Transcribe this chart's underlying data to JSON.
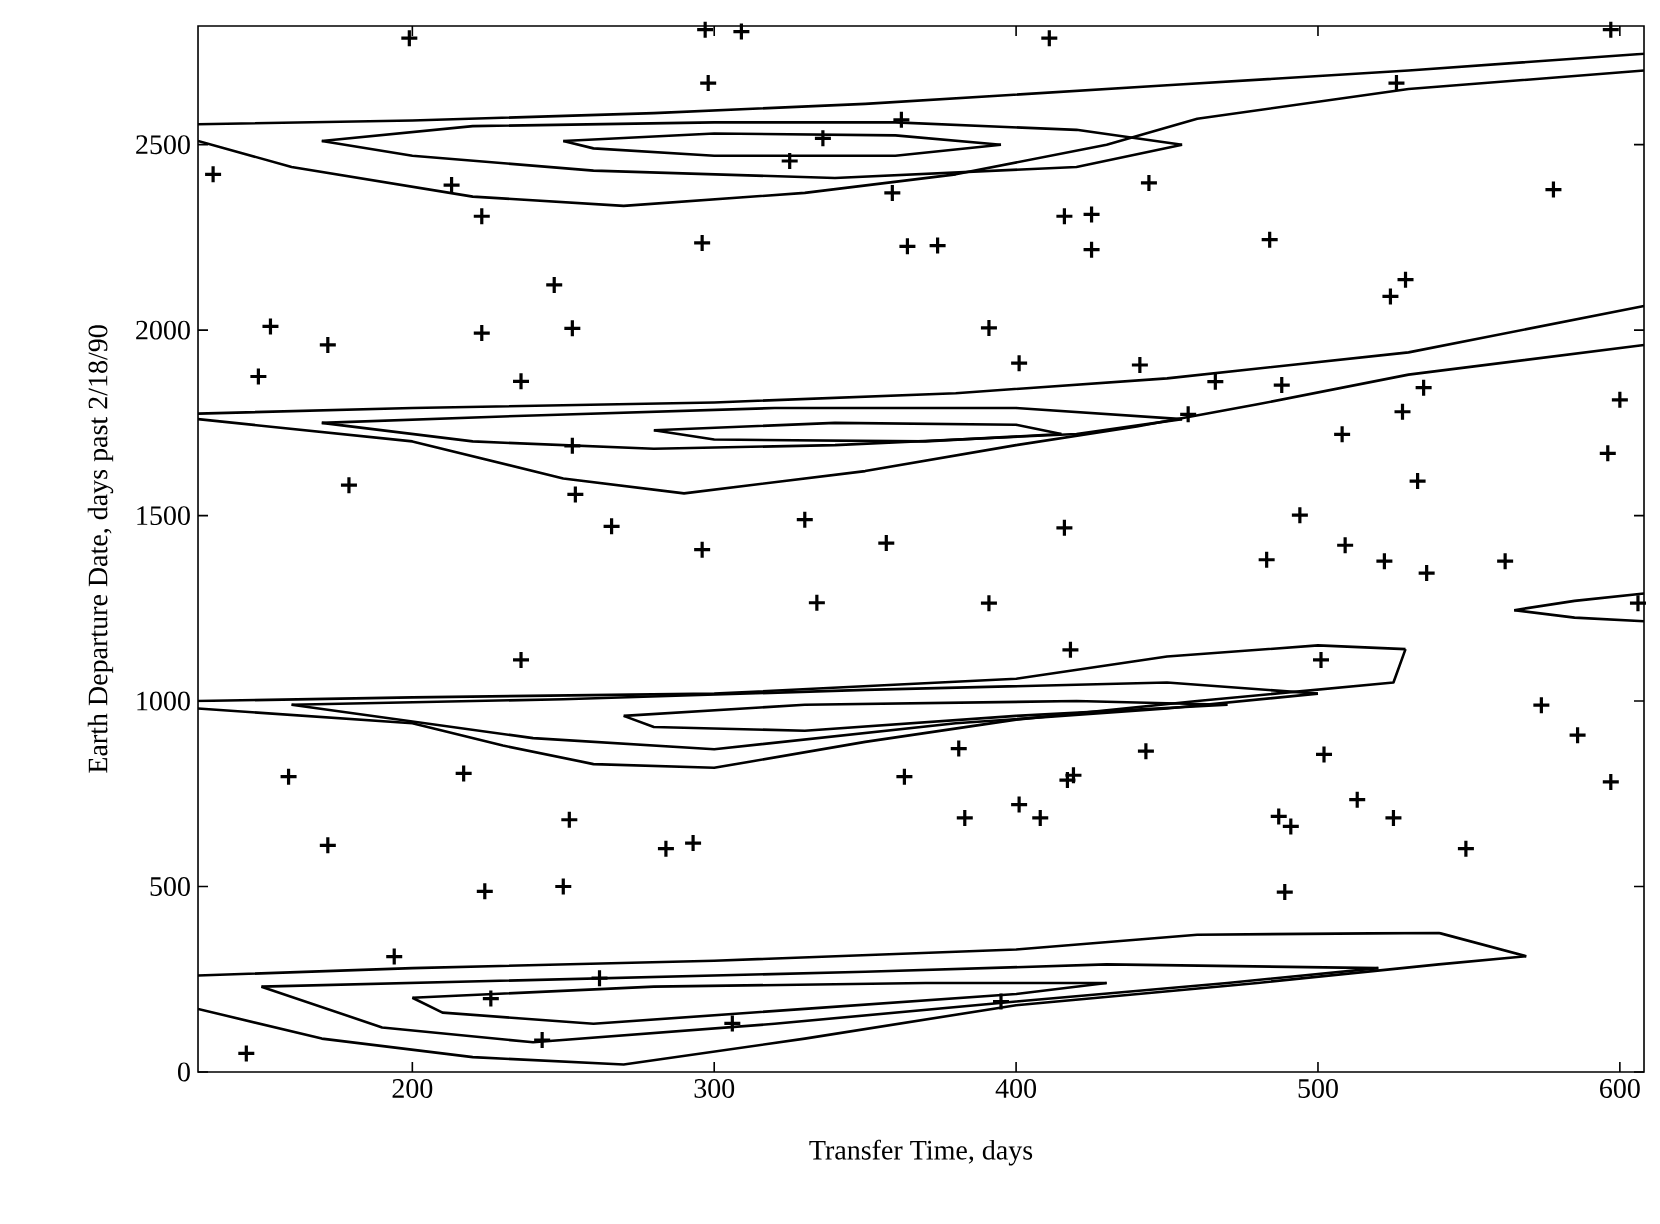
{
  "chart_data": {
    "type": "scatter",
    "xlabel": "Transfer Time, days",
    "ylabel": "Earth Departure Date, days past 2/18/90",
    "xlim": [
      129,
      608
    ],
    "ylim": [
      0,
      2820
    ],
    "xticks": [
      200,
      300,
      400,
      500,
      600
    ],
    "yticks": [
      0,
      500,
      1000,
      1500,
      2000,
      2500
    ],
    "grid": false,
    "series": [
      {
        "marker": "cross",
        "color": "#000000",
        "x": [
          199,
          297,
          309,
          298,
          362,
          336,
          325,
          134,
          213,
          223,
          296,
          364,
          247,
          153,
          223,
          253,
          172,
          149,
          236,
          179,
          254,
          266,
          330,
          296,
          357,
          359,
          253,
          334,
          411,
          597,
          526,
          444,
          578,
          416,
          425,
          425,
          374,
          484,
          529,
          524,
          391,
          401,
          441,
          466,
          488,
          535,
          528,
          600,
          457,
          508,
          596,
          533,
          494,
          416,
          483,
          509,
          522,
          536,
          562,
          391,
          236,
          159,
          217,
          363,
          172,
          252,
          284,
          293,
          224,
          250,
          194,
          145,
          243,
          306,
          226,
          262,
          606,
          418,
          501,
          574,
          586,
          597,
          381,
          443,
          502,
          417,
          419,
          383,
          401,
          408,
          487,
          491,
          513,
          525,
          549,
          489,
          395
        ],
        "values": [
          2787,
          2810,
          2805,
          2666,
          2567,
          2517,
          2456,
          2420,
          2391,
          2307,
          2235,
          2226,
          2122,
          2010,
          1992,
          2005,
          1960,
          1875,
          1862,
          1582,
          1557,
          1471,
          1489,
          1408,
          1426,
          2370,
          1688,
          1265,
          2787,
          2810,
          2666,
          2397,
          2379,
          2307,
          2312,
          2217,
          2228,
          2244,
          2136,
          2091,
          2006,
          1911,
          1906,
          1861,
          1852,
          1845,
          1780,
          1812,
          1773,
          1719,
          1668,
          1593,
          1501,
          1467,
          1381,
          1420,
          1377,
          1345,
          1377,
          1264,
          1111,
          796,
          805,
          796,
          611,
          680,
          602,
          617,
          487,
          500,
          311,
          50,
          86,
          131,
          198,
          253,
          1264,
          1138,
          1111,
          989,
          908,
          782,
          872,
          865,
          856,
          787,
          800,
          685,
          721,
          685,
          689,
          662,
          734,
          685,
          602,
          485,
          190
        ]
      },
      {
        "type": "line",
        "color": "#000000",
        "x": [
          129,
          200,
          280,
          350,
          450,
          530,
          608
        ],
        "values": [
          2555,
          2565,
          2585,
          2610,
          2660,
          2700,
          2745
        ]
      },
      {
        "type": "line",
        "color": "#000000",
        "x": [
          129,
          160,
          220,
          270,
          330,
          380,
          430,
          460,
          530,
          608
        ],
        "values": [
          2510,
          2440,
          2360,
          2335,
          2370,
          2420,
          2500,
          2570,
          2650,
          2700
        ]
      },
      {
        "type": "line",
        "color": "#000000",
        "x": [
          170,
          220,
          300,
          360,
          420,
          455
        ],
        "values": [
          2510,
          2550,
          2560,
          2560,
          2540,
          2500
        ]
      },
      {
        "type": "line",
        "color": "#000000",
        "x": [
          170,
          200,
          260,
          340,
          420,
          455
        ],
        "values": [
          2510,
          2470,
          2430,
          2410,
          2440,
          2500
        ]
      },
      {
        "type": "line",
        "color": "#000000",
        "x": [
          250,
          300,
          360,
          395
        ],
        "values": [
          2510,
          2530,
          2525,
          2500
        ]
      },
      {
        "type": "line",
        "color": "#000000",
        "x": [
          250,
          260,
          300,
          360,
          395
        ],
        "values": [
          2510,
          2490,
          2470,
          2470,
          2500
        ]
      },
      {
        "type": "line",
        "color": "#000000",
        "x": [
          129,
          200,
          300,
          380,
          450,
          530,
          608
        ],
        "values": [
          1775,
          1790,
          1805,
          1830,
          1870,
          1940,
          2065
        ]
      },
      {
        "type": "line",
        "color": "#000000",
        "x": [
          129,
          200,
          250,
          290,
          350,
          400,
          440,
          480,
          530,
          608
        ],
        "values": [
          1760,
          1700,
          1600,
          1560,
          1620,
          1690,
          1740,
          1800,
          1880,
          1960
        ]
      },
      {
        "type": "line",
        "color": "#000000",
        "x": [
          170,
          240,
          320,
          400,
          455
        ],
        "values": [
          1750,
          1770,
          1790,
          1790,
          1760
        ]
      },
      {
        "type": "line",
        "color": "#000000",
        "x": [
          170,
          220,
          280,
          340,
          420,
          455
        ],
        "values": [
          1750,
          1700,
          1680,
          1690,
          1720,
          1760
        ]
      },
      {
        "type": "line",
        "color": "#000000",
        "x": [
          280,
          340,
          400,
          415
        ],
        "values": [
          1730,
          1750,
          1745,
          1720
        ]
      },
      {
        "type": "line",
        "color": "#000000",
        "x": [
          280,
          300,
          370,
          415
        ],
        "values": [
          1730,
          1705,
          1700,
          1720
        ]
      },
      {
        "type": "line",
        "color": "#000000",
        "x": [
          129,
          200,
          300,
          400,
          450,
          500,
          529
        ],
        "values": [
          1000,
          1010,
          1020,
          1060,
          1120,
          1150,
          1140
        ]
      },
      {
        "type": "line",
        "color": "#000000",
        "x": [
          129,
          200,
          230,
          260,
          300,
          350,
          400,
          460,
          525,
          529
        ],
        "values": [
          980,
          940,
          880,
          830,
          820,
          890,
          950,
          1000,
          1050,
          1140
        ]
      },
      {
        "type": "line",
        "color": "#000000",
        "x": [
          160,
          250,
          350,
          450,
          500
        ],
        "values": [
          990,
          1005,
          1030,
          1050,
          1020
        ]
      },
      {
        "type": "line",
        "color": "#000000",
        "x": [
          160,
          240,
          300,
          380,
          450,
          500
        ],
        "values": [
          990,
          900,
          870,
          940,
          980,
          1020
        ]
      },
      {
        "type": "line",
        "color": "#000000",
        "x": [
          270,
          330,
          420,
          470
        ],
        "values": [
          960,
          990,
          1000,
          990
        ]
      },
      {
        "type": "line",
        "color": "#000000",
        "x": [
          270,
          280,
          330,
          400,
          470
        ],
        "values": [
          960,
          930,
          920,
          960,
          990
        ]
      },
      {
        "type": "line",
        "color": "#000000",
        "x": [
          129,
          200,
          300,
          400,
          460,
          540,
          569
        ],
        "values": [
          260,
          280,
          300,
          330,
          370,
          375,
          312
        ]
      },
      {
        "type": "line",
        "color": "#000000",
        "x": [
          129,
          170,
          220,
          270,
          330,
          400,
          480,
          540,
          569
        ],
        "values": [
          170,
          90,
          40,
          20,
          90,
          180,
          240,
          290,
          312
        ]
      },
      {
        "type": "line",
        "color": "#000000",
        "x": [
          150,
          250,
          350,
          430,
          520
        ],
        "values": [
          230,
          250,
          270,
          290,
          280
        ]
      },
      {
        "type": "line",
        "color": "#000000",
        "x": [
          150,
          190,
          240,
          320,
          400,
          470,
          520
        ],
        "values": [
          230,
          120,
          80,
          130,
          190,
          240,
          280
        ]
      },
      {
        "type": "line",
        "color": "#000000",
        "x": [
          200,
          280,
          370,
          430
        ],
        "values": [
          200,
          230,
          240,
          240
        ]
      },
      {
        "type": "line",
        "color": "#000000",
        "x": [
          200,
          210,
          260,
          330,
          400,
          430
        ],
        "values": [
          200,
          160,
          130,
          170,
          210,
          240
        ]
      },
      {
        "type": "line",
        "color": "#000000",
        "x": [
          565,
          585,
          608
        ],
        "values": [
          1245,
          1270,
          1290
        ]
      },
      {
        "type": "line",
        "color": "#000000",
        "x": [
          565,
          585,
          608
        ],
        "values": [
          1245,
          1225,
          1215
        ]
      }
    ]
  }
}
